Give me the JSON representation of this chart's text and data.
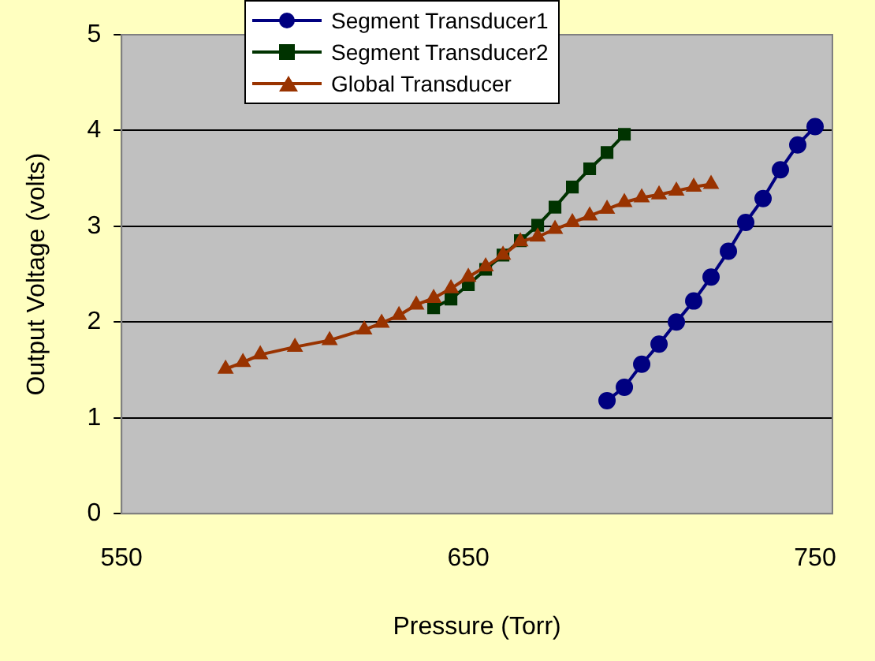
{
  "chart_data": {
    "type": "line",
    "xlabel": "Pressure (Torr)",
    "ylabel": "Output Voltage (volts)",
    "xlim": [
      550,
      755
    ],
    "xticks": [
      550,
      650,
      750
    ],
    "ylim": [
      0,
      5
    ],
    "yticks": [
      0,
      1,
      2,
      3,
      4,
      5
    ],
    "grid": "y",
    "legend": "top",
    "series": [
      {
        "name": "Segment Transducer1",
        "color": "#000080",
        "marker": "circle",
        "x": [
          690,
          695,
          700,
          705,
          710,
          715,
          720,
          725,
          730,
          735,
          740,
          745,
          750
        ],
        "values": [
          1.18,
          1.32,
          1.56,
          1.77,
          2.0,
          2.22,
          2.47,
          2.74,
          3.04,
          3.29,
          3.59,
          3.85,
          4.04
        ]
      },
      {
        "name": "Segment Transducer2",
        "color": "#003300",
        "marker": "square",
        "x": [
          640,
          645,
          650,
          655,
          660,
          665,
          670,
          675,
          680,
          685,
          690,
          695
        ],
        "values": [
          2.15,
          2.24,
          2.39,
          2.55,
          2.7,
          2.85,
          3.01,
          3.2,
          3.41,
          3.6,
          3.77,
          3.96
        ]
      },
      {
        "name": "Global Transducer",
        "color": "#993300",
        "marker": "triangle",
        "x": [
          580,
          585,
          590,
          600,
          610,
          620,
          625,
          630,
          635,
          640,
          645,
          650,
          655,
          660,
          665,
          670,
          675,
          680,
          685,
          690,
          695,
          700,
          705,
          710,
          715,
          720
        ],
        "values": [
          1.51,
          1.58,
          1.66,
          1.74,
          1.81,
          1.92,
          1.99,
          2.07,
          2.18,
          2.25,
          2.35,
          2.47,
          2.58,
          2.7,
          2.84,
          2.89,
          2.97,
          3.04,
          3.11,
          3.18,
          3.25,
          3.3,
          3.33,
          3.37,
          3.41,
          3.44
        ]
      }
    ]
  }
}
